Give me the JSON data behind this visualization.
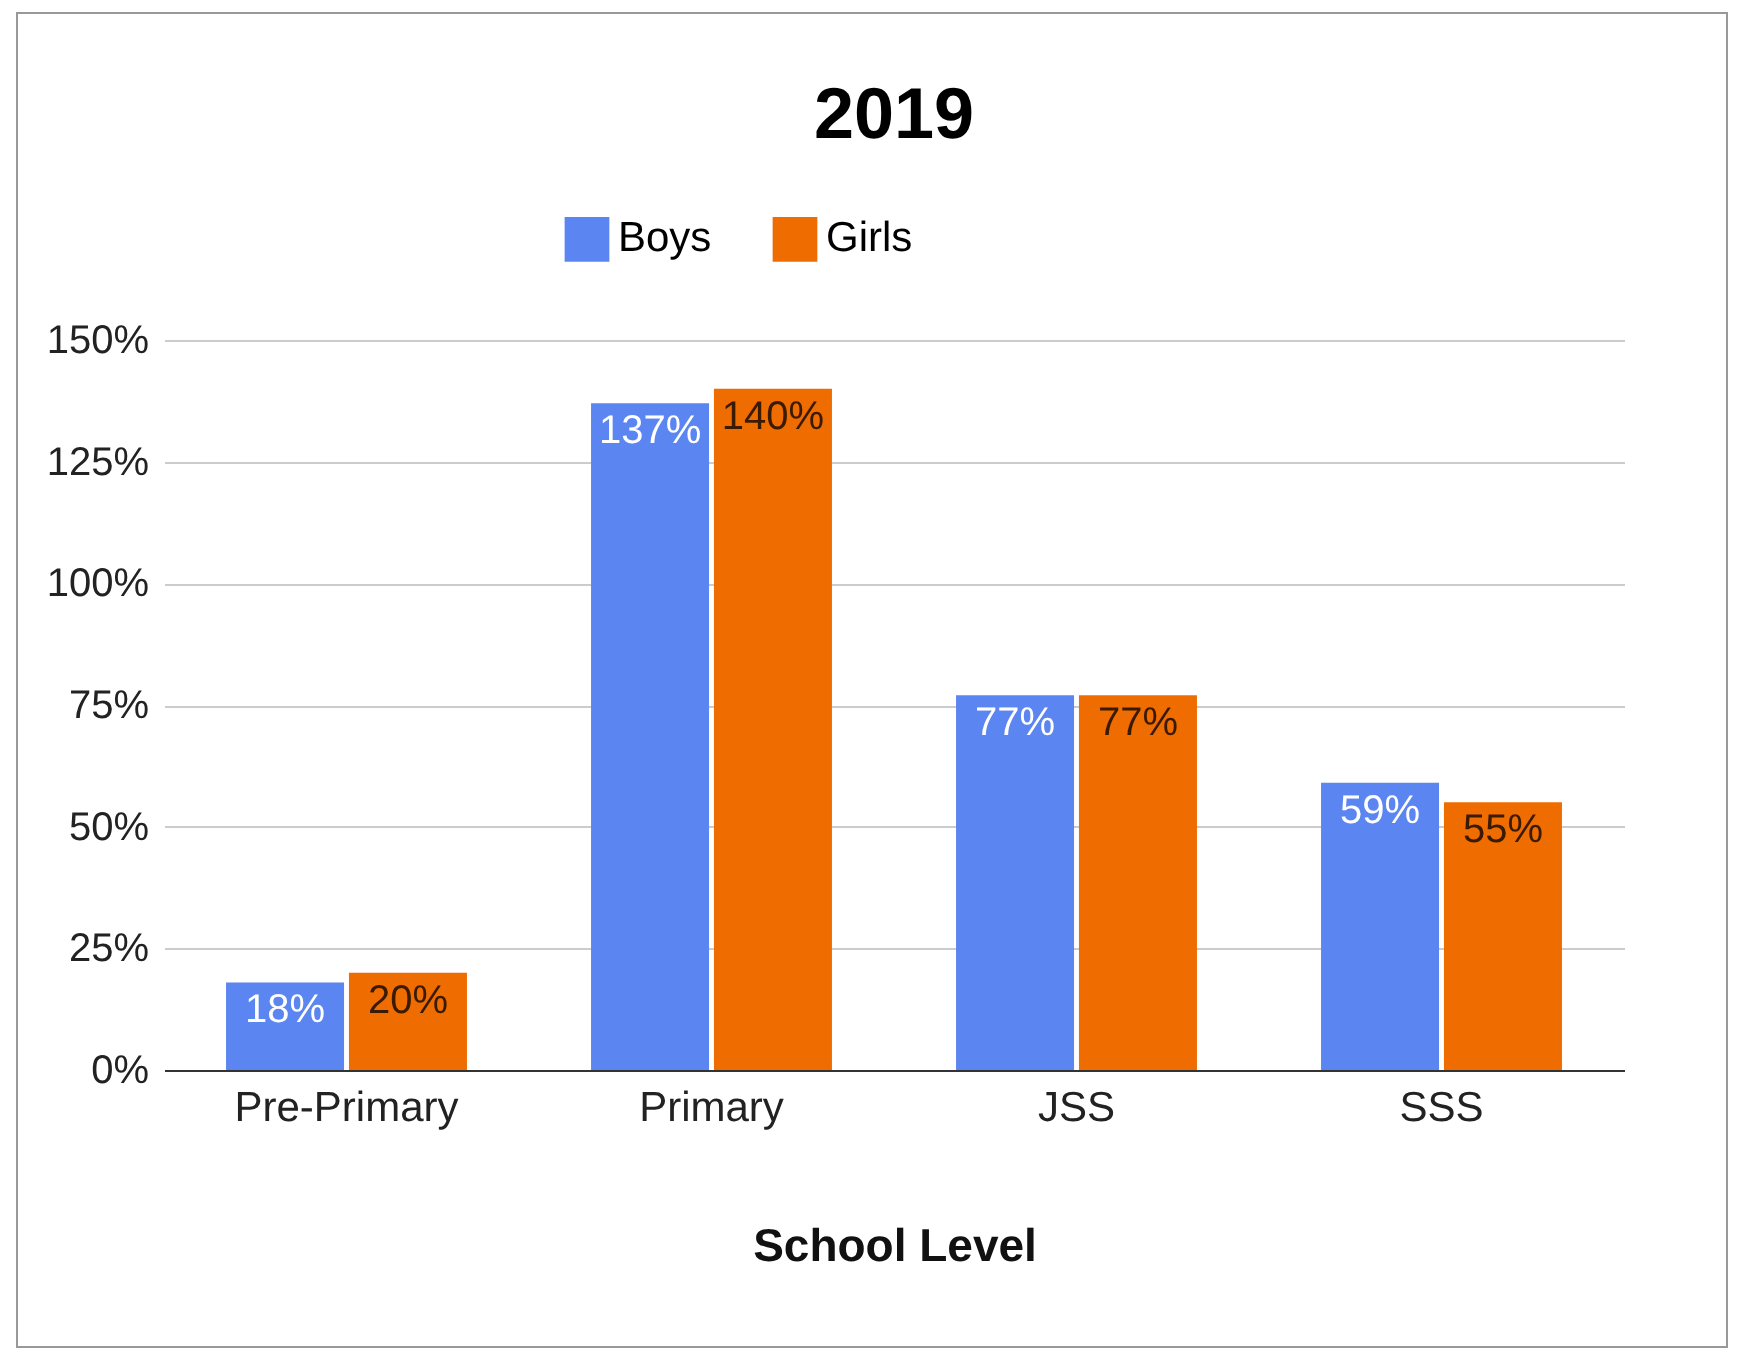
{
  "chart_data": {
    "type": "bar",
    "title": "2019",
    "xlabel": "School Level",
    "categories": [
      "Pre-Primary",
      "Primary",
      "JSS",
      "SSS"
    ],
    "series": [
      {
        "name": "Boys",
        "color": "#5b85f0",
        "values": [
          18,
          137,
          77,
          59
        ],
        "value_labels": [
          "18%",
          "137%",
          "77%",
          "59%"
        ]
      },
      {
        "name": "Girls",
        "color": "#ef6c00",
        "values": [
          20,
          140,
          77,
          55
        ],
        "value_labels": [
          "20%",
          "140%",
          "77%",
          "55%"
        ]
      }
    ],
    "ylim": [
      0,
      150
    ],
    "yticks": [
      {
        "value": 0,
        "label": "0%"
      },
      {
        "value": 25,
        "label": "25%"
      },
      {
        "value": 50,
        "label": "50%"
      },
      {
        "value": 75,
        "label": "75%"
      },
      {
        "value": 100,
        "label": "100%"
      },
      {
        "value": 125,
        "label": "125%"
      },
      {
        "value": 150,
        "label": "150%"
      }
    ],
    "grid": "y",
    "legend": "top"
  }
}
